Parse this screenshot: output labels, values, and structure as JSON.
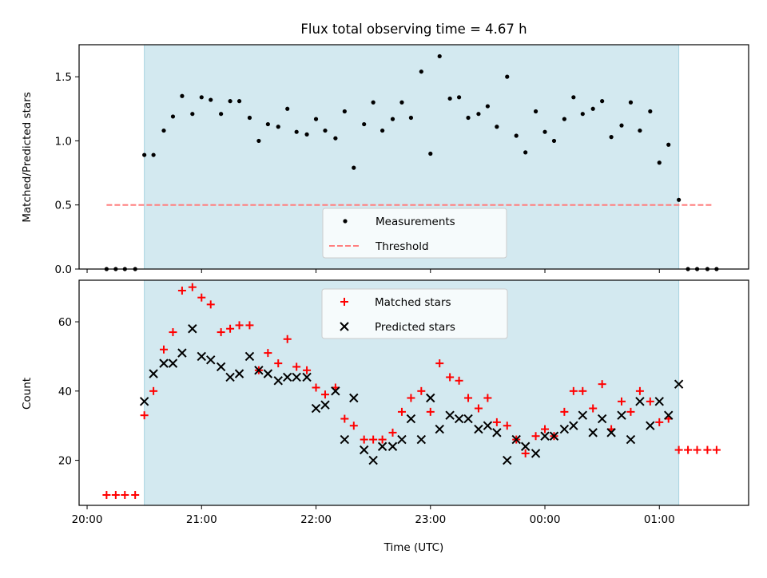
{
  "chart_data": [
    {
      "type": "scatter",
      "title": "Flux total observing time = 4.67 h",
      "xlabel": "",
      "ylabel": "Matched/Predicted stars",
      "ylim": [
        0,
        1.75
      ],
      "xlim": [
        19.93,
        25.78
      ],
      "yticks": [
        0.0,
        0.5,
        1.0,
        1.5
      ],
      "ytick_labels": [
        "0.0",
        "0.5",
        "1.0",
        "1.5"
      ],
      "observing_window": [
        20.5,
        25.17
      ],
      "shade_color": "#d3e9f0",
      "grid": false,
      "legend_position": "lower center",
      "legend": [
        {
          "label": "Measurements",
          "marker": "dot",
          "color": "#000000"
        },
        {
          "label": "Threshold",
          "marker": "dashed-line",
          "color": "#ff7f7f"
        }
      ],
      "threshold": {
        "value": 0.5,
        "x_range": [
          20.17,
          25.47
        ]
      },
      "series": [
        {
          "name": "Measurements",
          "x": [
            20.17,
            20.25,
            20.33,
            20.42,
            20.5,
            20.58,
            20.67,
            20.75,
            20.83,
            20.92,
            21.0,
            21.08,
            21.17,
            21.25,
            21.33,
            21.42,
            21.5,
            21.58,
            21.67,
            21.75,
            21.83,
            21.92,
            22.0,
            22.08,
            22.17,
            22.25,
            22.33,
            22.42,
            22.5,
            22.58,
            22.67,
            22.75,
            22.83,
            22.92,
            23.0,
            23.08,
            23.17,
            23.25,
            23.33,
            23.42,
            23.5,
            23.58,
            23.67,
            23.75,
            23.83,
            23.92,
            24.0,
            24.08,
            24.17,
            24.25,
            24.33,
            24.42,
            24.5,
            24.58,
            24.67,
            24.75,
            24.83,
            24.92,
            25.0,
            25.08,
            25.17,
            25.25,
            25.33,
            25.42,
            25.5
          ],
          "y": [
            0.0,
            0.0,
            0.0,
            0.0,
            0.89,
            0.89,
            1.08,
            1.19,
            1.35,
            1.21,
            1.34,
            1.32,
            1.21,
            1.31,
            1.31,
            1.18,
            1.0,
            1.13,
            1.11,
            1.25,
            1.07,
            1.05,
            1.17,
            1.08,
            1.02,
            1.23,
            0.79,
            1.13,
            1.3,
            1.08,
            1.17,
            1.3,
            1.18,
            1.54,
            0.9,
            1.66,
            1.33,
            1.34,
            1.18,
            1.21,
            1.27,
            1.11,
            1.5,
            1.04,
            0.91,
            1.23,
            1.07,
            1.0,
            1.17,
            1.34,
            1.21,
            1.25,
            1.31,
            1.03,
            1.12,
            1.3,
            1.08,
            1.23,
            0.83,
            0.97,
            0.54,
            0.0,
            0.0,
            0.0,
            0.0
          ]
        }
      ]
    },
    {
      "type": "scatter",
      "xlabel": "Time (UTC)",
      "ylabel": "Count",
      "ylim": [
        7,
        72
      ],
      "xlim": [
        19.93,
        25.78
      ],
      "yticks": [
        20,
        40,
        60
      ],
      "ytick_labels": [
        "20",
        "40",
        "60"
      ],
      "xticks": [
        20,
        21,
        22,
        23,
        24,
        25
      ],
      "xtick_labels": [
        "20:00",
        "21:00",
        "22:00",
        "23:00",
        "00:00",
        "01:00"
      ],
      "observing_window": [
        20.5,
        25.17
      ],
      "shade_color": "#d3e9f0",
      "grid": false,
      "legend_position": "upper center",
      "legend": [
        {
          "label": "Matched stars",
          "marker": "plus",
          "color": "#ff0000"
        },
        {
          "label": "Predicted stars",
          "marker": "x",
          "color": "#000000"
        }
      ],
      "series": [
        {
          "name": "Matched stars",
          "marker": "plus",
          "color": "#ff0000",
          "x": [
            20.17,
            20.25,
            20.33,
            20.42,
            20.5,
            20.58,
            20.67,
            20.75,
            20.83,
            20.92,
            21.0,
            21.08,
            21.17,
            21.25,
            21.33,
            21.42,
            21.5,
            21.58,
            21.67,
            21.75,
            21.83,
            21.92,
            22.0,
            22.08,
            22.17,
            22.25,
            22.33,
            22.42,
            22.5,
            22.58,
            22.67,
            22.75,
            22.83,
            22.92,
            23.0,
            23.08,
            23.17,
            23.25,
            23.33,
            23.42,
            23.5,
            23.58,
            23.67,
            23.75,
            23.83,
            23.92,
            24.0,
            24.08,
            24.17,
            24.25,
            24.33,
            24.42,
            24.5,
            24.58,
            24.67,
            24.75,
            24.83,
            24.92,
            25.0,
            25.08,
            25.17,
            25.25,
            25.33,
            25.42,
            25.5
          ],
          "y": [
            10,
            10,
            10,
            10,
            33,
            40,
            52,
            57,
            69,
            70,
            67,
            65,
            57,
            58,
            59,
            59,
            46,
            51,
            48,
            55,
            47,
            46,
            41,
            39,
            41,
            32,
            30,
            26,
            26,
            26,
            28,
            34,
            38,
            40,
            34,
            48,
            44,
            43,
            38,
            35,
            38,
            31,
            30,
            26,
            22,
            27,
            29,
            27,
            34,
            40,
            40,
            35,
            42,
            29,
            37,
            34,
            40,
            37,
            31,
            32,
            23,
            23,
            23,
            23,
            23
          ]
        },
        {
          "name": "Predicted stars",
          "marker": "x",
          "color": "#000000",
          "x": [
            20.5,
            20.58,
            20.67,
            20.75,
            20.83,
            20.92,
            21.0,
            21.08,
            21.17,
            21.25,
            21.33,
            21.42,
            21.5,
            21.58,
            21.67,
            21.75,
            21.83,
            21.92,
            22.0,
            22.08,
            22.17,
            22.25,
            22.33,
            22.42,
            22.5,
            22.58,
            22.67,
            22.75,
            22.83,
            22.92,
            23.0,
            23.08,
            23.17,
            23.25,
            23.33,
            23.42,
            23.5,
            23.58,
            23.67,
            23.75,
            23.83,
            23.92,
            24.0,
            24.08,
            24.17,
            24.25,
            24.33,
            24.42,
            24.5,
            24.58,
            24.67,
            24.75,
            24.83,
            24.92,
            25.0,
            25.08,
            25.17
          ],
          "y": [
            37,
            45,
            48,
            48,
            51,
            58,
            50,
            49,
            47,
            44,
            45,
            50,
            46,
            45,
            43,
            44,
            44,
            44,
            35,
            36,
            40,
            26,
            38,
            23,
            20,
            24,
            24,
            26,
            32,
            26,
            38,
            29,
            33,
            32,
            32,
            29,
            30,
            28,
            20,
            26,
            24,
            22,
            27,
            27,
            29,
            30,
            33,
            28,
            32,
            28,
            33,
            26,
            37,
            30,
            37,
            33,
            42
          ]
        }
      ]
    }
  ]
}
